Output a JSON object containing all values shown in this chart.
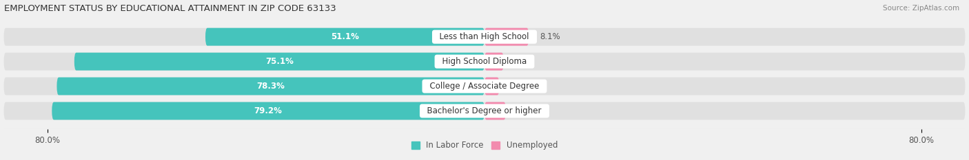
{
  "title": "EMPLOYMENT STATUS BY EDUCATIONAL ATTAINMENT IN ZIP CODE 63133",
  "source": "Source: ZipAtlas.com",
  "categories": [
    "Less than High School",
    "High School Diploma",
    "College / Associate Degree",
    "Bachelor's Degree or higher"
  ],
  "labor_force_pct": [
    51.1,
    75.1,
    78.3,
    79.2
  ],
  "unemployed_pct": [
    8.1,
    3.5,
    2.7,
    3.9
  ],
  "x_axis_left_label": "80.0%",
  "x_axis_right_label": "80.0%",
  "bar_height": 0.72,
  "labor_force_color": "#45C4BC",
  "unemployed_color": "#F28BAE",
  "background_color": "#f0f0f0",
  "bar_bg_color": "#e0e0e0",
  "label_fontsize": 8.5,
  "title_fontsize": 9.5,
  "source_fontsize": 7.5,
  "legend_fontsize": 8.5,
  "x_range": 88
}
